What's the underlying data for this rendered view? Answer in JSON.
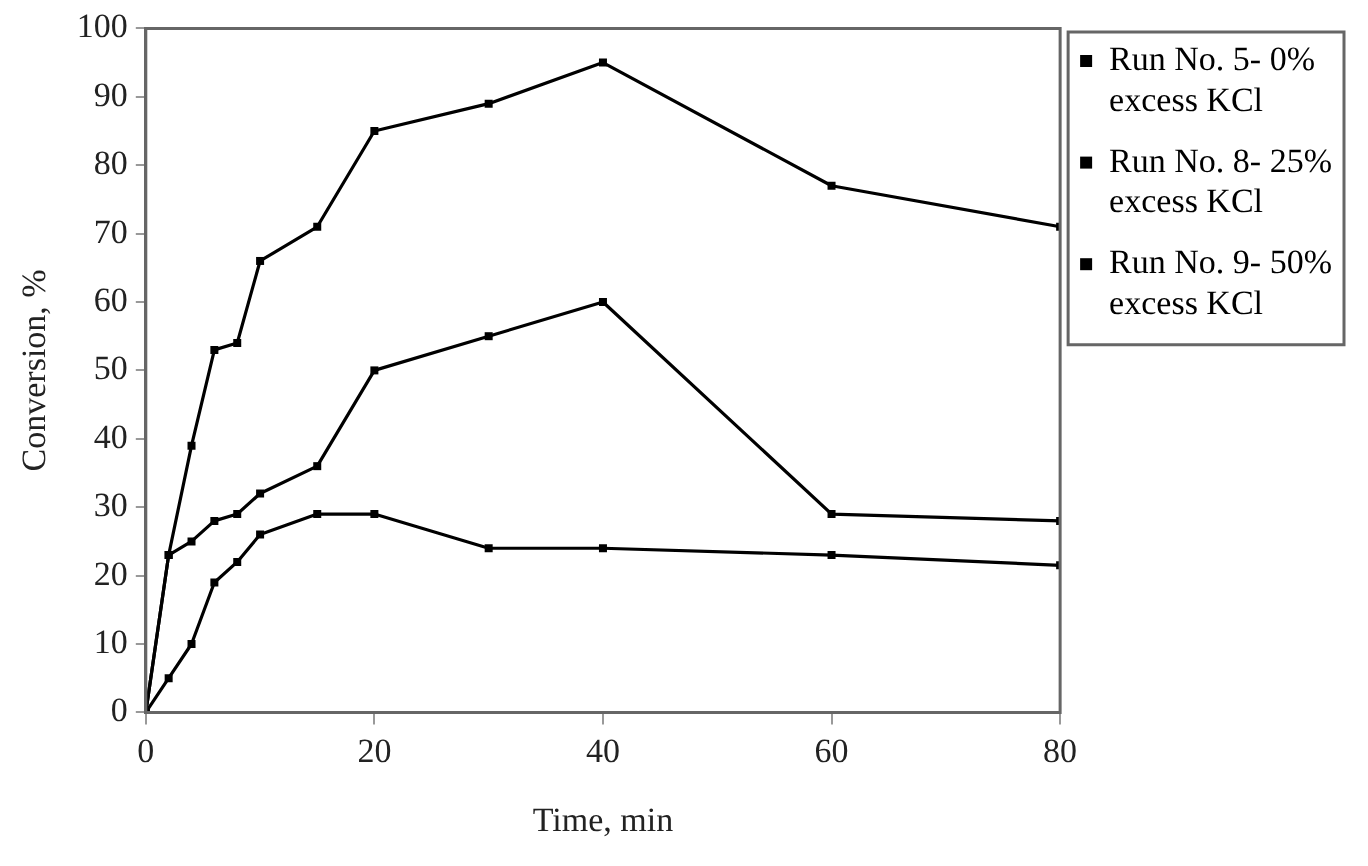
{
  "chart_data": {
    "type": "line",
    "xlabel": "Time, min",
    "ylabel": "Conversion, %",
    "x": [
      0,
      2,
      4,
      6,
      8,
      10,
      15,
      20,
      30,
      40,
      60,
      80
    ],
    "series": [
      {
        "name": "Run No. 5- 0% excess KCl",
        "color": "#000000",
        "values": [
          0,
          23,
          39,
          53,
          54,
          66,
          71,
          85,
          89,
          95,
          77,
          71
        ]
      },
      {
        "name": "Run No. 8- 25% excess KCl",
        "color": "#000000",
        "values": [
          0,
          23,
          25,
          28,
          29,
          32,
          36,
          50,
          55,
          60,
          29,
          28
        ]
      },
      {
        "name": "Run No. 9- 50% excess KCl",
        "color": "#000000",
        "values": [
          0,
          5,
          10,
          19,
          22,
          26,
          29,
          29,
          24,
          24,
          23,
          21.5
        ]
      }
    ],
    "xlim": [
      0,
      80
    ],
    "xticks": [
      0,
      20,
      40,
      60,
      80
    ],
    "ylim": [
      0,
      100
    ],
    "yticks": [
      0,
      10,
      20,
      30,
      40,
      50,
      60,
      70,
      80,
      90,
      100
    ],
    "grid": false,
    "legend": "right",
    "marker": "square",
    "line_style": "solid"
  }
}
